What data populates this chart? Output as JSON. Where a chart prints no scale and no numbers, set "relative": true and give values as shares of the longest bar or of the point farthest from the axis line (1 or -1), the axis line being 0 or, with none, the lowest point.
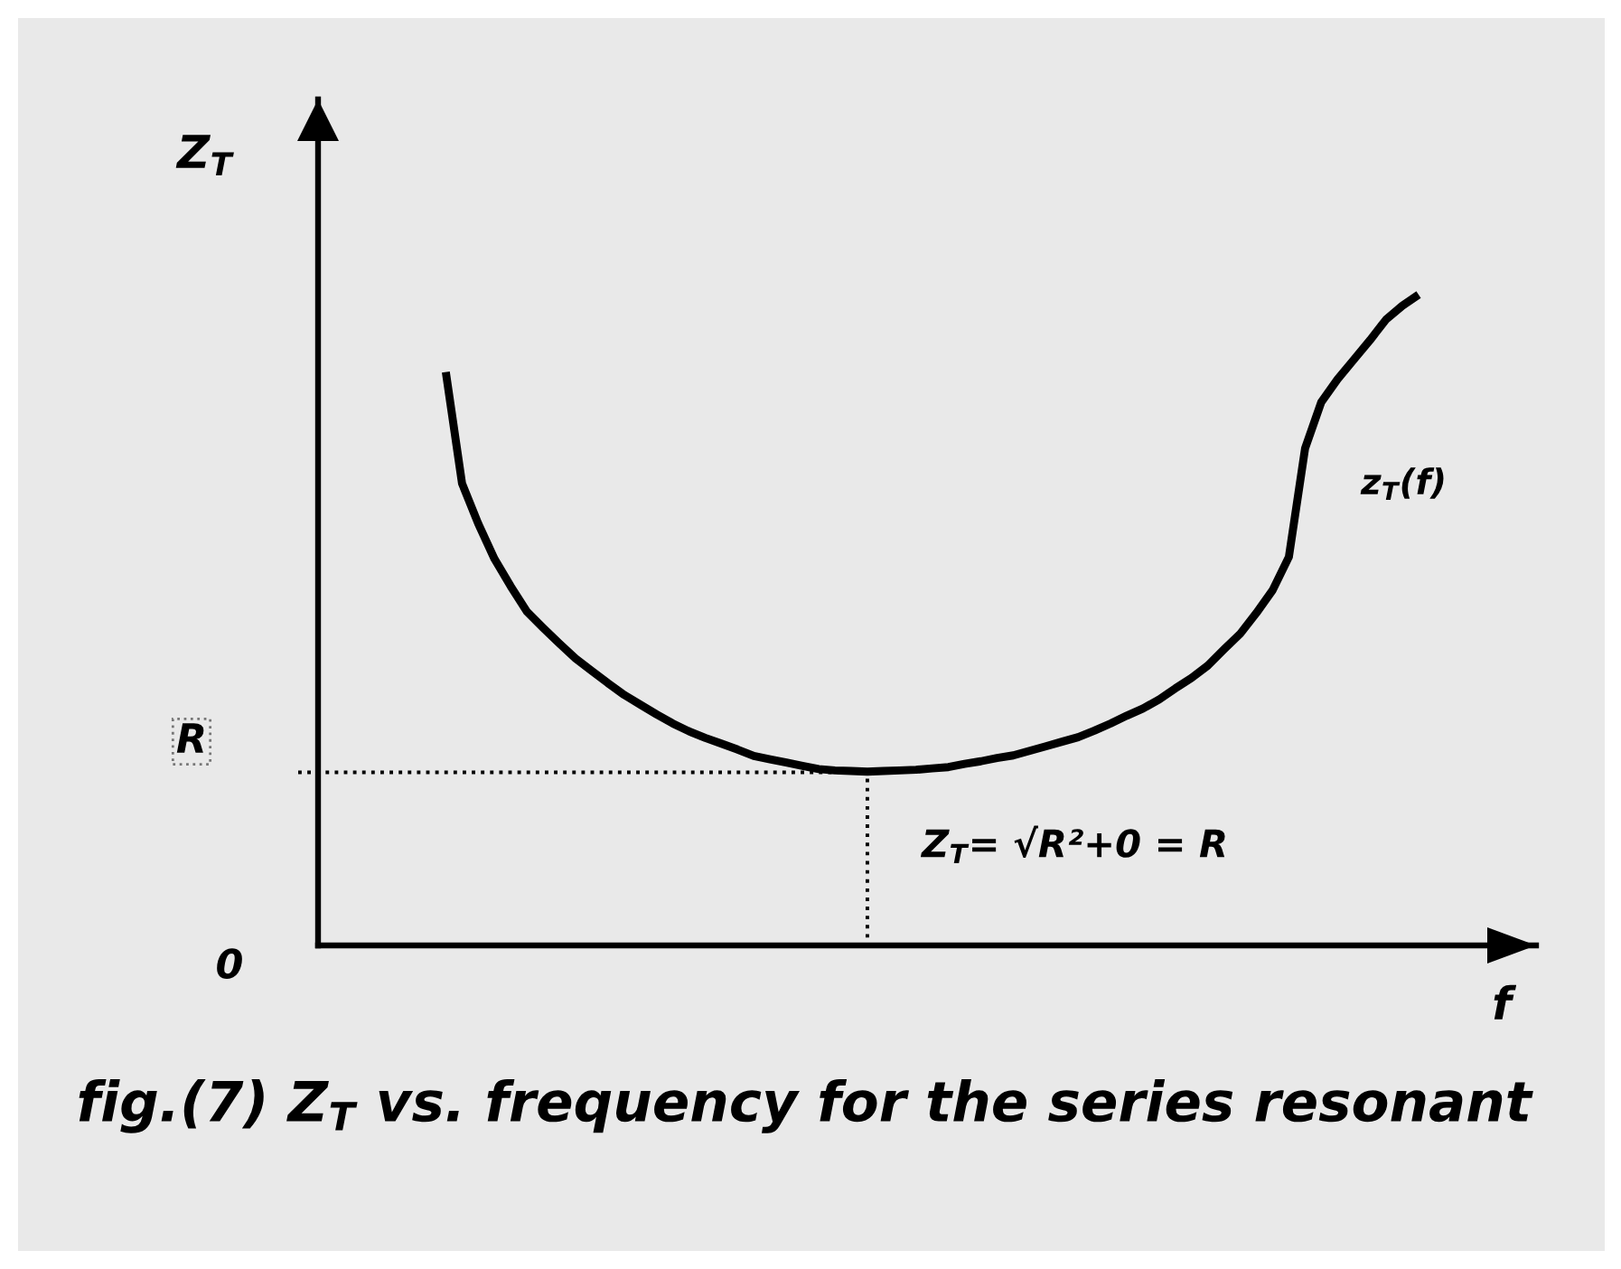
{
  "chart_data": {
    "type": "line",
    "title": "fig.(7) Z$_{T}$ vs. frequency for the series resonant",
    "xlabel": "f",
    "relative": true,
    "categories": [
      null,
      null,
      null,
      null,
      null,
      null,
      null,
      null,
      null,
      null,
      null,
      null,
      null,
      null,
      null,
      null,
      null,
      null,
      null,
      null,
      null,
      null,
      null,
      null,
      null,
      null,
      null,
      null,
      null,
      null,
      null,
      null,
      null,
      null,
      null,
      null,
      null,
      null,
      null,
      null,
      null,
      null,
      null,
      null,
      null,
      null,
      null,
      null,
      null,
      null,
      null,
      null,
      null,
      null,
      null,
      null,
      null,
      null,
      null,
      null,
      null
    ],
    "series": [
      {
        "name": "z$_{T}$(f)",
        "color": "#000000",
        "values": [
          0.881,
          0.71,
          0.648,
          0.594,
          0.552,
          0.513,
          0.488,
          0.464,
          0.441,
          0.422,
          0.403,
          0.385,
          0.37,
          0.355,
          0.341,
          0.329,
          0.319,
          0.31,
          0.301,
          0.291,
          0.286,
          0.281,
          0.276,
          0.271,
          0.269,
          0.268,
          0.267,
          0.268,
          0.269,
          0.27,
          0.272,
          0.274,
          0.279,
          0.283,
          0.288,
          0.292,
          0.299,
          0.306,
          0.313,
          0.32,
          0.33,
          0.341,
          0.353,
          0.364,
          0.378,
          0.395,
          0.411,
          0.43,
          0.455,
          0.479,
          0.511,
          0.546,
          0.597,
          0.764,
          0.835,
          0.87,
          0.9,
          0.93,
          0.962,
          0.983,
          1
        ]
      }
    ],
    "ref_lines": [
      {
        "axis": "y",
        "value": 0.266,
        "label": "R",
        "line_style": "dotted",
        "color": "#000000"
      }
    ],
    "annotations": [
      "Z$_{T}$= √R²+0 = R",
      "0",
      "Z$_{T}$"
    ],
    "grid": false,
    "marker": "none",
    "line_style": "solid"
  }
}
